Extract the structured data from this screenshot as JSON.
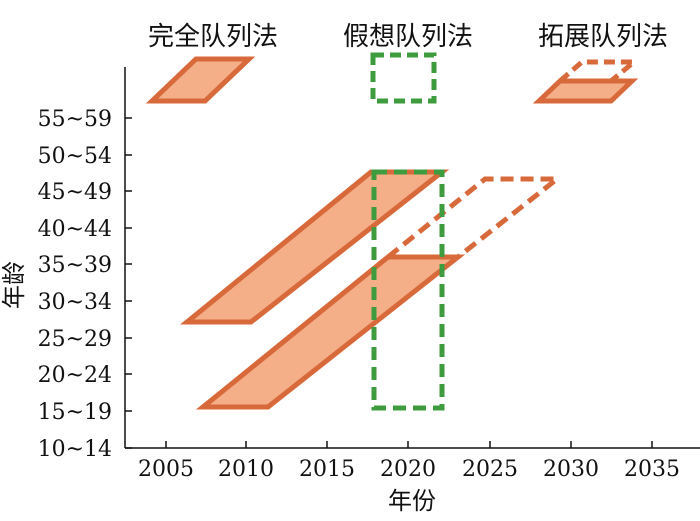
{
  "legend": {
    "full": "完全队列法",
    "hypo": "假想队列法",
    "ext": "拓展队列法"
  },
  "axes": {
    "xlabel": "年份",
    "ylabel": "年龄",
    "x_ticks": [
      "2005",
      "2010",
      "2015",
      "2020",
      "2025",
      "2030",
      "2035"
    ],
    "y_ticks": [
      "10~14",
      "15~19",
      "20~24",
      "25~29",
      "30~34",
      "35~39",
      "40~44",
      "45~49",
      "50~54",
      "55~59"
    ]
  },
  "colors": {
    "cohort_fill": "#f4ae88",
    "cohort_stroke": "#d8693a",
    "hypothetical": "#3e9b3e"
  }
}
